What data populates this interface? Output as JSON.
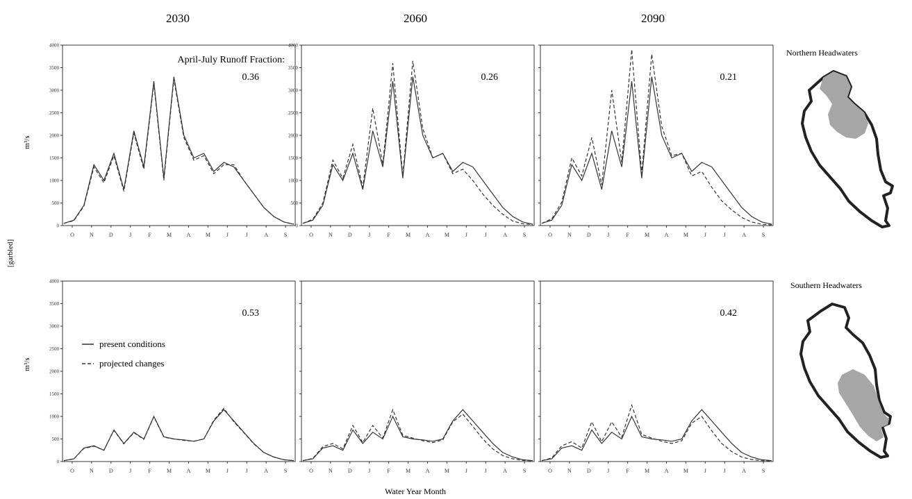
{
  "figure": {
    "column_titles": [
      "2030",
      "2060",
      "2090"
    ],
    "xlabel": "Water Year Month",
    "side_ylabel": "[garbled]",
    "row_ylabels": [
      "m³/s",
      "m³/s"
    ],
    "row_labels": [
      "Northern Headwaters",
      "Southern Headwaters"
    ],
    "annotation_title": "April-July Runoff Fraction:",
    "legend": {
      "present_label": "present conditions",
      "projected_label": "projected changes"
    },
    "map_fill_color": "#a6a6a6",
    "line_color": "#333333"
  },
  "chart_data": [
    {
      "type": "line",
      "row": 0,
      "col": 0,
      "ylim": [
        0,
        4000
      ],
      "yticks": [
        "0",
        "500",
        "1000",
        "1500",
        "2000",
        "2500",
        "3000",
        "3500",
        "4000"
      ],
      "xticks": [
        "O",
        "N",
        "D",
        "J",
        "F",
        "M",
        "A",
        "M",
        "J",
        "J",
        "A",
        "S"
      ],
      "annotation": "0.36",
      "series": [
        {
          "style": "solid",
          "values": [
            50,
            120,
            450,
            1350,
            1000,
            1600,
            800,
            2100,
            1300,
            3200,
            1050,
            3300,
            2000,
            1500,
            1600,
            1200,
            1400,
            1300,
            1000,
            700,
            400,
            200,
            80,
            30
          ]
        },
        {
          "style": "dashed",
          "values": [
            50,
            110,
            430,
            1300,
            950,
            1550,
            760,
            2050,
            1250,
            3150,
            1000,
            3250,
            1950,
            1450,
            1550,
            1150,
            1350,
            1350,
            1000,
            700,
            400,
            200,
            80,
            30
          ]
        }
      ]
    },
    {
      "type": "line",
      "row": 0,
      "col": 1,
      "ylim": [
        0,
        4000
      ],
      "yticks": [
        "0",
        "500",
        "1000",
        "1500",
        "2000",
        "2500",
        "3000",
        "3500",
        "4000"
      ],
      "xticks": [
        "O",
        "N",
        "D",
        "J",
        "F",
        "M",
        "A",
        "M",
        "J",
        "J",
        "A",
        "S"
      ],
      "annotation": "0.26",
      "series": [
        {
          "style": "solid",
          "values": [
            50,
            120,
            450,
            1350,
            1000,
            1600,
            800,
            2100,
            1300,
            3200,
            1050,
            3300,
            2000,
            1500,
            1600,
            1200,
            1400,
            1300,
            1000,
            700,
            400,
            200,
            80,
            30
          ]
        },
        {
          "style": "dashed",
          "values": [
            50,
            140,
            500,
            1450,
            1050,
            1800,
            850,
            2600,
            1350,
            3600,
            1100,
            3650,
            2150,
            1500,
            1600,
            1150,
            1250,
            1000,
            700,
            450,
            250,
            100,
            40,
            20
          ]
        }
      ]
    },
    {
      "type": "line",
      "row": 0,
      "col": 2,
      "ylim": [
        0,
        4000
      ],
      "yticks": [],
      "xticks": [
        "O",
        "N",
        "D",
        "J",
        "F",
        "M",
        "A",
        "M",
        "J",
        "J",
        "A",
        "S"
      ],
      "annotation": "0.21",
      "series": [
        {
          "style": "solid",
          "values": [
            50,
            120,
            450,
            1350,
            1000,
            1600,
            800,
            2100,
            1300,
            3200,
            1050,
            3300,
            2000,
            1500,
            1600,
            1200,
            1400,
            1300,
            1000,
            700,
            400,
            200,
            80,
            30
          ]
        },
        {
          "style": "dashed",
          "values": [
            50,
            150,
            520,
            1500,
            1100,
            1950,
            900,
            3000,
            1400,
            3900,
            1150,
            3800,
            2200,
            1550,
            1600,
            1100,
            1200,
            850,
            550,
            350,
            180,
            80,
            30,
            15
          ]
        }
      ]
    },
    {
      "type": "line",
      "row": 1,
      "col": 0,
      "ylim": [
        0,
        4000
      ],
      "yticks": [
        "0",
        "500",
        "1000",
        "1500",
        "2000",
        "2500",
        "3000",
        "3500",
        "4000"
      ],
      "xticks": [
        "O",
        "N",
        "D",
        "J",
        "F",
        "M",
        "A",
        "M",
        "J",
        "J",
        "A",
        "S"
      ],
      "annotation": "0.53",
      "series": [
        {
          "style": "solid",
          "values": [
            20,
            60,
            300,
            350,
            250,
            700,
            400,
            650,
            500,
            1000,
            550,
            500,
            480,
            450,
            500,
            900,
            1150,
            900,
            650,
            400,
            200,
            100,
            40,
            20
          ]
        },
        {
          "style": "dashed",
          "values": [
            20,
            60,
            290,
            340,
            250,
            690,
            390,
            640,
            490,
            990,
            540,
            500,
            470,
            450,
            500,
            920,
            1180,
            880,
            640,
            390,
            200,
            100,
            40,
            20
          ]
        }
      ]
    },
    {
      "type": "line",
      "row": 1,
      "col": 1,
      "ylim": [
        0,
        4000
      ],
      "yticks": [],
      "xticks": [
        "O",
        "N",
        "D",
        "J",
        "F",
        "M",
        "A",
        "M",
        "J",
        "J",
        "A",
        "S"
      ],
      "annotation": "",
      "series": [
        {
          "style": "solid",
          "values": [
            20,
            60,
            300,
            350,
            250,
            700,
            400,
            650,
            500,
            1000,
            550,
            500,
            480,
            450,
            500,
            900,
            1150,
            900,
            650,
            400,
            200,
            100,
            40,
            20
          ]
        },
        {
          "style": "dashed",
          "values": [
            20,
            70,
            330,
            400,
            280,
            800,
            420,
            800,
            520,
            1150,
            580,
            520,
            460,
            420,
            480,
            880,
            1050,
            780,
            500,
            280,
            130,
            60,
            25,
            15
          ]
        }
      ]
    },
    {
      "type": "line",
      "row": 1,
      "col": 2,
      "ylim": [
        0,
        4000
      ],
      "yticks": [],
      "xticks": [
        "O",
        "N",
        "D",
        "J",
        "F",
        "M",
        "A",
        "M",
        "J",
        "J",
        "A",
        "S"
      ],
      "annotation": "0.42",
      "series": [
        {
          "style": "solid",
          "values": [
            20,
            60,
            300,
            350,
            250,
            700,
            400,
            650,
            500,
            1000,
            550,
            500,
            480,
            450,
            500,
            900,
            1150,
            900,
            650,
            400,
            200,
            100,
            40,
            20
          ]
        },
        {
          "style": "dashed",
          "values": [
            20,
            80,
            350,
            440,
            300,
            880,
            440,
            880,
            540,
            1250,
            600,
            520,
            450,
            400,
            460,
            850,
            1000,
            680,
            400,
            220,
            100,
            45,
            20,
            10
          ]
        }
      ]
    }
  ]
}
